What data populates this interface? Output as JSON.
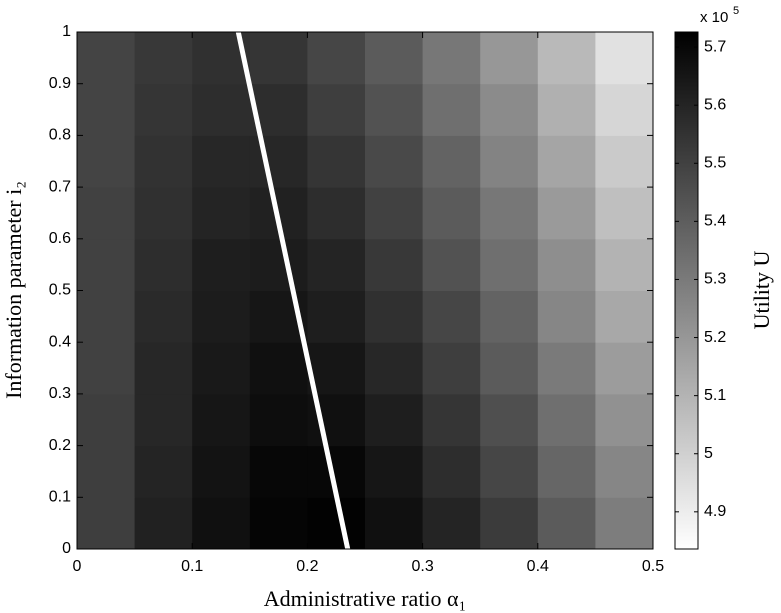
{
  "chart_data": {
    "type": "contour",
    "xlabel": "Administrative ratio α₁",
    "ylabel": "Information parameter i₂",
    "colorbar_label": "Utility U",
    "colorbar_multiplier": "x 10",
    "colorbar_exponent": "5",
    "x": [
      0.025,
      0.075,
      0.125,
      0.175,
      0.225,
      0.275,
      0.325,
      0.375,
      0.425,
      0.475
    ],
    "y": [
      0.05,
      0.15,
      0.25,
      0.35,
      0.45,
      0.55,
      0.65,
      0.75,
      0.85,
      0.95
    ],
    "z": [
      [
        5.51,
        5.61,
        5.67,
        5.71,
        5.72,
        5.67,
        5.6,
        5.52,
        5.41,
        5.29
      ],
      [
        5.51,
        5.6,
        5.66,
        5.7,
        5.7,
        5.65,
        5.57,
        5.48,
        5.37,
        5.26
      ],
      [
        5.51,
        5.59,
        5.65,
        5.68,
        5.67,
        5.62,
        5.54,
        5.45,
        5.34,
        5.22
      ],
      [
        5.5,
        5.59,
        5.64,
        5.67,
        5.65,
        5.59,
        5.51,
        5.41,
        5.3,
        5.18
      ],
      [
        5.5,
        5.58,
        5.63,
        5.65,
        5.62,
        5.56,
        5.48,
        5.38,
        5.26,
        5.14
      ],
      [
        5.5,
        5.57,
        5.62,
        5.63,
        5.6,
        5.53,
        5.44,
        5.34,
        5.23,
        5.1
      ],
      [
        5.5,
        5.56,
        5.6,
        5.61,
        5.57,
        5.5,
        5.41,
        5.31,
        5.19,
        5.06
      ],
      [
        5.49,
        5.55,
        5.59,
        5.59,
        5.54,
        5.47,
        5.38,
        5.27,
        5.15,
        5.02
      ],
      [
        5.49,
        5.54,
        5.57,
        5.57,
        5.51,
        5.44,
        5.34,
        5.24,
        5.11,
        4.98
      ],
      [
        5.49,
        5.53,
        5.56,
        5.54,
        5.48,
        5.41,
        5.31,
        5.2,
        5.08,
        4.94
      ]
    ],
    "line": {
      "x": [
        0.14,
        0.235
      ],
      "y": [
        1,
        0
      ],
      "color": "#ffffff"
    },
    "xlim": [
      0,
      0.5
    ],
    "xticks": [
      0,
      0.1,
      0.2,
      0.3,
      0.4,
      0.5
    ],
    "ylim": [
      0,
      1
    ],
    "yticks": [
      0,
      0.1,
      0.2,
      0.3,
      0.4,
      0.5,
      0.6,
      0.7,
      0.8,
      0.9,
      1
    ],
    "zlim": [
      4.836,
      5.726
    ],
    "zticks": [
      4.9,
      5,
      5.1,
      5.2,
      5.3,
      5.4,
      5.5,
      5.6,
      5.7
    ],
    "colormap": "gray-reversed"
  }
}
